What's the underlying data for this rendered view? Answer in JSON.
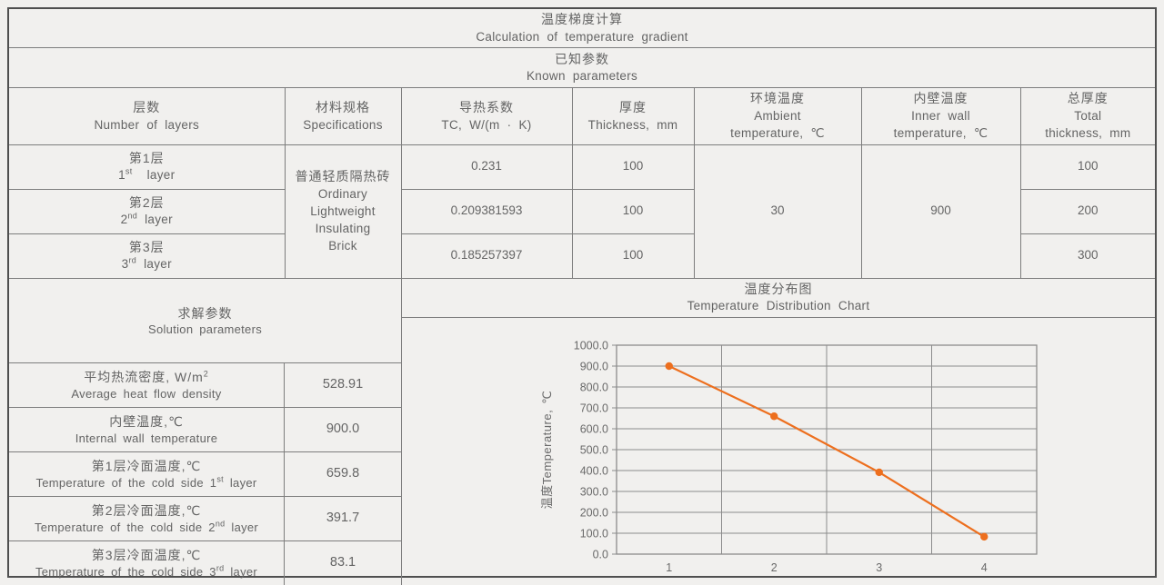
{
  "title": {
    "zh": "温度梯度计算",
    "en": "Calculation of temperature gradient"
  },
  "known_section": {
    "zh": "已知参数",
    "en": "Known parameters"
  },
  "known_table": {
    "headers": {
      "layers": {
        "zh": "层数",
        "en": "Number of layers"
      },
      "spec": {
        "zh": "材料规格",
        "en": "Specifications"
      },
      "tc": {
        "zh": "导热系数",
        "en": "TC, W/(m · K)"
      },
      "thickness": {
        "zh": "厚度",
        "en": "Thickness, mm"
      },
      "ambient": {
        "zh": "环境温度",
        "en1": "Ambient",
        "en2": "temperature, ℃"
      },
      "inner": {
        "zh": "内壁温度",
        "en1": "Inner wall",
        "en2": "temperature, ℃"
      },
      "total": {
        "zh": "总厚度",
        "en1": "Total",
        "en2": "thickness, mm"
      }
    },
    "spec_value": {
      "lines": [
        "普通轻质隔热砖",
        "Ordinary",
        "Lightweight",
        "Insulating",
        "Brick"
      ]
    },
    "ambient_value": "30",
    "inner_value": "900",
    "rows": [
      {
        "zh": "第1层",
        "num": "1",
        "suffix": "st",
        "word": "layer",
        "tc": "0.231",
        "thickness": "100",
        "total": "100"
      },
      {
        "zh": "第2层",
        "num": "2",
        "suffix": "nd",
        "word": "layer",
        "tc": "0.209381593",
        "thickness": "100",
        "total": "200"
      },
      {
        "zh": "第3层",
        "num": "3",
        "suffix": "rd",
        "word": "layer",
        "tc": "0.185257397",
        "thickness": "100",
        "total": "300"
      }
    ]
  },
  "solution": {
    "header": {
      "zh": "求解参数",
      "en": "Solution parameters"
    },
    "rows": [
      {
        "zh": "平均热流密度, W/m",
        "zh_sup": "2",
        "en": "Average heat flow density",
        "value": "528.91"
      },
      {
        "zh": "内壁温度,℃",
        "en": "Internal wall temperature",
        "value": "900.0"
      },
      {
        "zh": "第1层冷面温度,℃",
        "en_prefix": "Temperature of the cold side",
        "num": "1",
        "suffix": "st",
        "word": "layer",
        "value": "659.8"
      },
      {
        "zh": "第2层冷面温度,℃",
        "en_prefix": "Temperature of the cold side",
        "num": "2",
        "suffix": "nd",
        "word": "layer",
        "value": "391.7"
      },
      {
        "zh": "第3层冷面温度,℃",
        "en_prefix": "Temperature of the cold side",
        "num": "3",
        "suffix": "rd",
        "word": "layer",
        "value": "83.1"
      }
    ]
  },
  "chart_section": {
    "zh": "温度分布图",
    "en": "Temperature Distribution Chart"
  },
  "chart_data": {
    "type": "line",
    "categories": [
      "1",
      "2",
      "3",
      "4"
    ],
    "values": [
      900.0,
      659.8,
      391.7,
      83.1
    ],
    "title": "温度分布图 Temperature Distribution Chart",
    "xlabel": "",
    "ylabel": "温度Temperature, ℃",
    "ylim": [
      0,
      1000
    ],
    "ytick_step": 100,
    "ytick_format_decimals": 1,
    "grid": true,
    "legend": false,
    "line_color": "#ED6F1E",
    "grid_color": "#8c8c8c",
    "marker": "circle"
  },
  "colors": {
    "background": "#f1f0ee",
    "border_inner": "#7d7d7d",
    "border_outer": "#4f4f4f",
    "text": "#646464",
    "accent_orange": "#ED6F1E"
  }
}
